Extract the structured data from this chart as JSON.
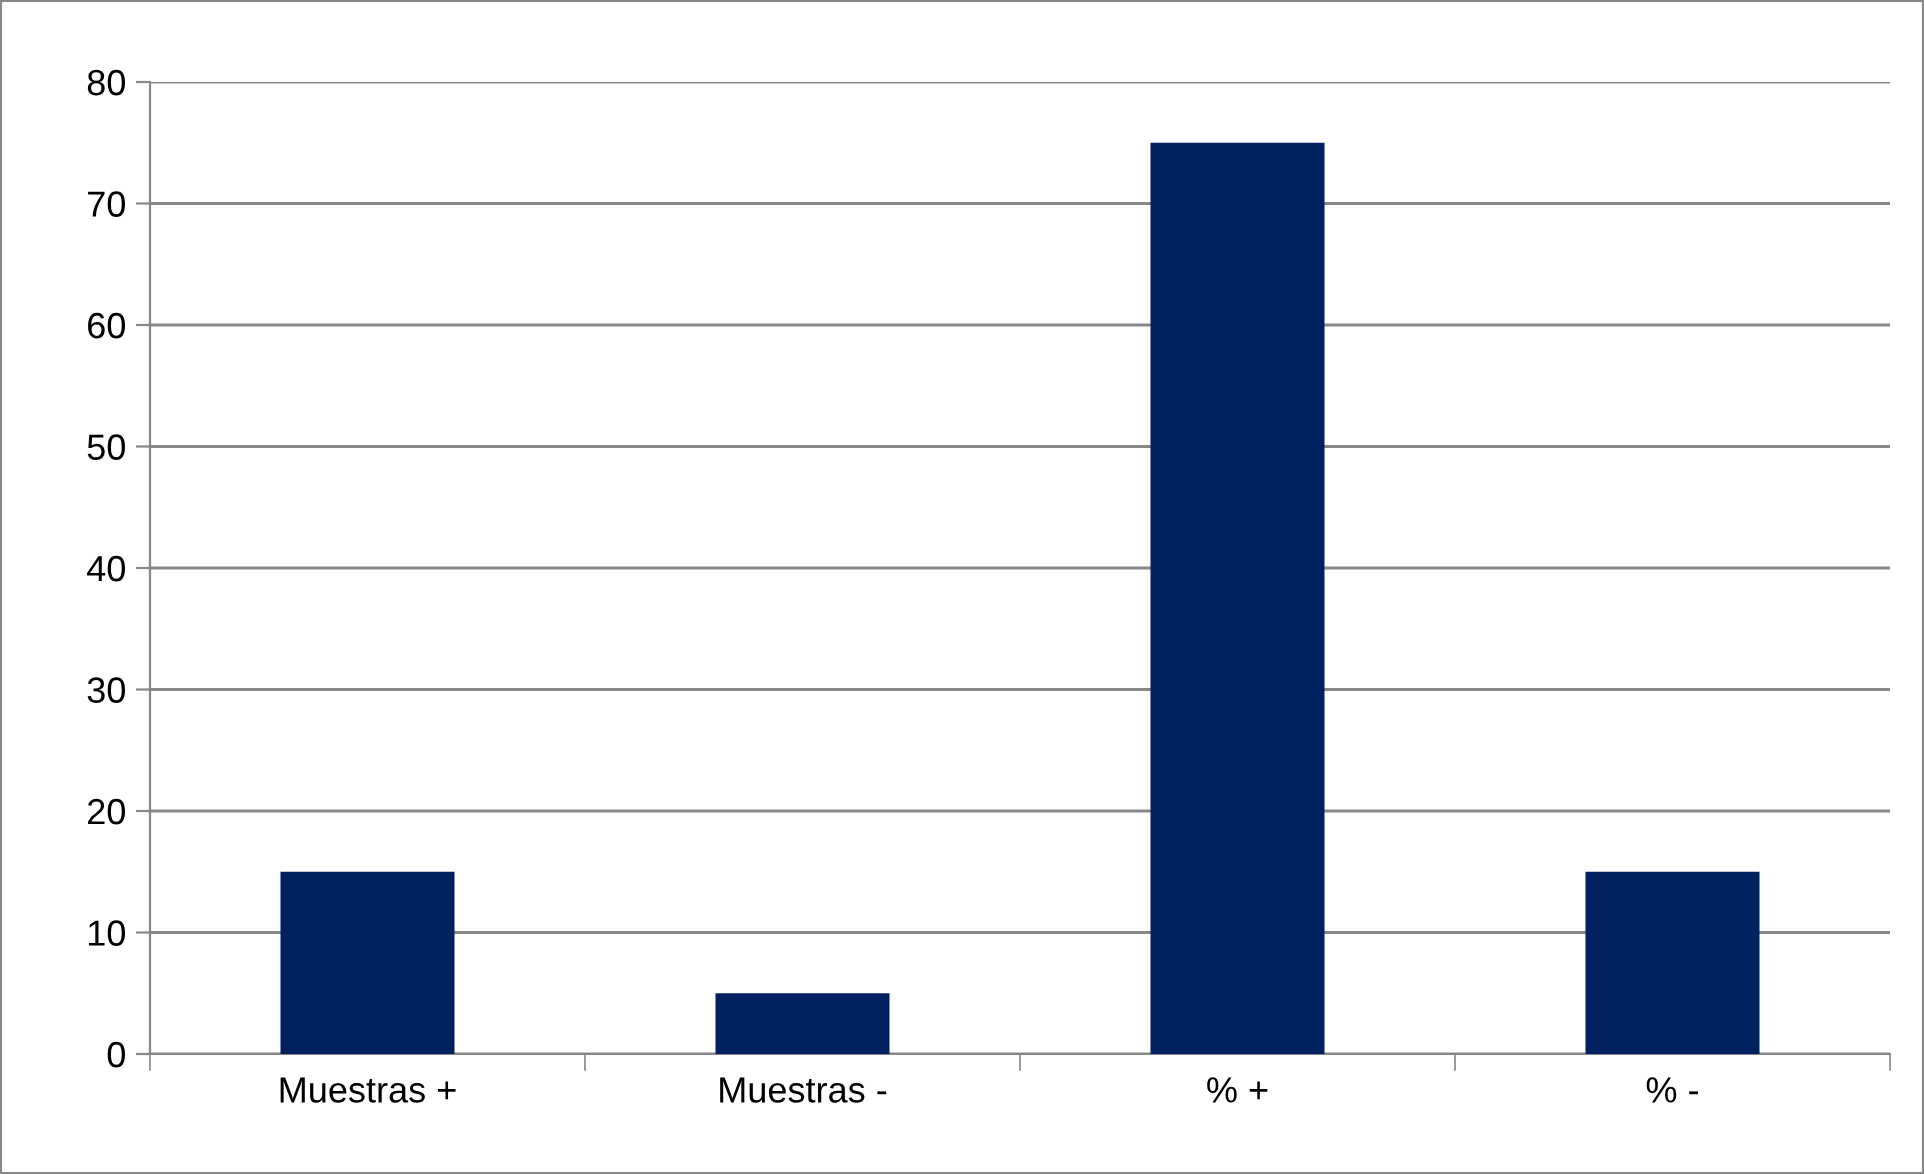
{
  "chart_data": {
    "type": "bar",
    "categories": [
      "Muestras +",
      "Muestras -",
      "% +",
      "% -"
    ],
    "values": [
      15,
      5,
      75,
      15
    ],
    "color": "#002060",
    "ylim": [
      0,
      80
    ],
    "yticks": [
      0,
      10,
      20,
      30,
      40,
      50,
      60,
      70,
      80
    ],
    "grid": "y",
    "legend": false
  }
}
